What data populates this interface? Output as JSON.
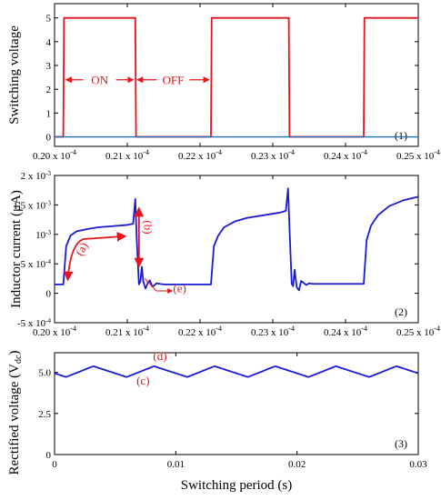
{
  "chart_data": [
    {
      "type": "line",
      "panel_label": "(1)",
      "ylabel": "Switching voltage",
      "xlim": [
        0.2,
        0.25
      ],
      "ylim": [
        -0.4,
        5.6
      ],
      "x_ticks": [
        {
          "value": 0.2,
          "label": "0.20 x 10"
        },
        {
          "value": 0.21,
          "label": "0.21 x 10"
        },
        {
          "value": 0.22,
          "label": "0.22 x 10"
        },
        {
          "value": 0.23,
          "label": "0.23 x 10"
        },
        {
          "value": 0.24,
          "label": "0.24 x 10"
        },
        {
          "value": 0.25,
          "label": "0.25 x 10"
        }
      ],
      "x_tick_exponent": "-4",
      "y_ticks": [
        {
          "value": 0,
          "label": "0"
        },
        {
          "value": 1,
          "label": "1"
        },
        {
          "value": 2,
          "label": "2"
        },
        {
          "value": 3,
          "label": "3"
        },
        {
          "value": 4,
          "label": "4"
        },
        {
          "value": 5,
          "label": "5"
        }
      ],
      "series": [
        {
          "color": "#e8141c",
          "x": [
            0.2,
            0.2012,
            0.2013,
            0.2111,
            0.2112,
            0.2215,
            0.2216,
            0.2322,
            0.2323,
            0.2425,
            0.2426,
            0.25
          ],
          "y": [
            0,
            0,
            5,
            5,
            0,
            0,
            5,
            5,
            0,
            0,
            5,
            5
          ]
        },
        {
          "color": "#1f6fb5",
          "x": [
            0.2,
            0.25
          ],
          "y": [
            0,
            0
          ]
        }
      ],
      "annotations": [
        {
          "text": "ON",
          "x_from": 0.2013,
          "x_to": 0.2111,
          "y": 2.4
        },
        {
          "text": "OFF",
          "x_from": 0.2111,
          "x_to": 0.2215,
          "y": 2.4
        }
      ]
    },
    {
      "type": "line",
      "panel_label": "(2)",
      "ylabel": "Inductor current (μA)",
      "xlim": [
        0.2,
        0.25
      ],
      "ylim": [
        -0.0005,
        0.002
      ],
      "x_ticks": [
        {
          "value": 0.2,
          "label": "0.20 x 10"
        },
        {
          "value": 0.21,
          "label": "0.21 x 10"
        },
        {
          "value": 0.22,
          "label": "0.22 x 10"
        },
        {
          "value": 0.23,
          "label": "0.23 x 10"
        },
        {
          "value": 0.24,
          "label": "0.24 x 10"
        },
        {
          "value": 0.25,
          "label": "0.25 x 10"
        }
      ],
      "x_tick_exponent": "-4",
      "y_ticks": [
        {
          "value": -0.0005,
          "label": "-5 x 10",
          "exp": "-4"
        },
        {
          "value": 0,
          "label": "0",
          "exp": ""
        },
        {
          "value": 0.0005,
          "label": "5 x 10",
          "exp": "-4"
        },
        {
          "value": 0.001,
          "label": "10",
          "exp": "-3"
        },
        {
          "value": 0.0015,
          "label": "1.5 x 10",
          "exp": "-3"
        },
        {
          "value": 0.002,
          "label": "2 x 10",
          "exp": "-3"
        }
      ],
      "series": [
        {
          "color": "#1a1ad6",
          "x": [
            0.2,
            0.2012,
            0.2016,
            0.2022,
            0.203,
            0.2045,
            0.206,
            0.208,
            0.21,
            0.2108,
            0.2111,
            0.2113,
            0.2116,
            0.2118,
            0.212,
            0.2122,
            0.2125,
            0.2128,
            0.2131,
            0.2134,
            0.2137,
            0.214,
            0.2145,
            0.215,
            0.2215,
            0.2219,
            0.2225,
            0.2233,
            0.2248,
            0.2265,
            0.2285,
            0.231,
            0.2318,
            0.2321,
            0.2323,
            0.2326,
            0.2328,
            0.233,
            0.2333,
            0.2336,
            0.2339,
            0.2342,
            0.2346,
            0.235,
            0.2355,
            0.2425,
            0.2429,
            0.2435,
            0.2445,
            0.246,
            0.248,
            0.25
          ],
          "y": [
            0.00015,
            0.00015,
            0.0008,
            0.00098,
            0.00105,
            0.00109,
            0.00112,
            0.00114,
            0.00116,
            0.00118,
            0.0016,
            0.0009,
            0.00015,
            0.0002,
            0.00045,
            0.0002,
            8e-05,
            0.00017,
            0.00022,
            0.00012,
            0.00013,
            0.00017,
            0.00016,
            0.00015,
            0.00015,
            0.0008,
            0.00098,
            0.00112,
            0.00122,
            0.00128,
            0.00132,
            0.00137,
            0.0014,
            0.00178,
            0.0011,
            0.00016,
            0.00012,
            0.0004,
            0.0001,
            5e-05,
            0.00021,
            0.00018,
            0.00014,
            0.00017,
            0.00016,
            0.00016,
            0.0009,
            0.00115,
            0.00133,
            0.00148,
            0.00158,
            0.00164
          ]
        }
      ],
      "annotations": [
        {
          "text": "(a)",
          "rotate": -62,
          "x": 0.2042,
          "y": 0.00072
        },
        {
          "text": "(b)",
          "rotate": 90,
          "x": 0.2123,
          "y": 0.00112
        },
        {
          "text": "(e)",
          "rotate": 0,
          "x": 0.2172,
          "y": 2e-05
        }
      ]
    },
    {
      "type": "line",
      "panel_label": "(3)",
      "xlabel": "Switching period (s)",
      "ylabel": "Rectified voltage (V",
      "ylabel_sub": "dc",
      "ylabel_tail": ")",
      "xlim": [
        0,
        0.03
      ],
      "ylim": [
        0,
        6.2
      ],
      "x_ticks": [
        {
          "value": 0,
          "label": "0"
        },
        {
          "value": 0.01,
          "label": "0.01"
        },
        {
          "value": 0.02,
          "label": "0.02"
        },
        {
          "value": 0.03,
          "label": "0.03"
        }
      ],
      "y_ticks": [
        {
          "value": 0,
          "label": "0"
        },
        {
          "value": 2.5,
          "label": "2.5"
        },
        {
          "value": 5.0,
          "label": "5.0"
        }
      ],
      "ripple": {
        "period": 0.005,
        "peak_offset": 0.0032,
        "min": 4.72,
        "max": 5.38
      },
      "series": [
        {
          "color": "#1a1ad6"
        }
      ],
      "annotations": [
        {
          "text": "(c)",
          "x": 0.0073,
          "y": 4.25
        },
        {
          "text": "(d)",
          "x": 0.0087,
          "y": 5.75
        }
      ]
    }
  ]
}
